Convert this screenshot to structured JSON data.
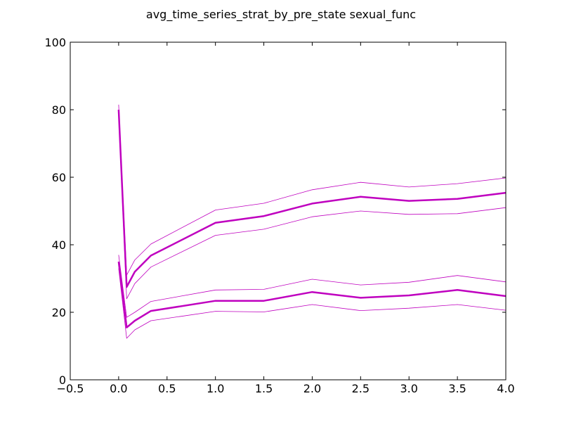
{
  "chart_data": {
    "type": "line",
    "title": "avg_time_series_strat_by_pre_state sexual_func",
    "xlabel": "",
    "ylabel": "",
    "xlim": [
      -0.5,
      4.0
    ],
    "ylim": [
      0,
      100
    ],
    "x_ticks": [
      "−0.5",
      "0.0",
      "0.5",
      "1.0",
      "1.5",
      "2.0",
      "2.5",
      "3.0",
      "3.5",
      "4.0"
    ],
    "y_ticks": [
      "0",
      "20",
      "40",
      "60",
      "80",
      "100"
    ],
    "grid": false,
    "line_color": "#bf00bf",
    "x": [
      0.0,
      0.083,
      0.167,
      0.333,
      1.0,
      1.5,
      2.0,
      2.5,
      3.0,
      3.5,
      4.0
    ],
    "series": [
      {
        "role": "mean",
        "values": [
          80.0,
          27.5,
          32.0,
          36.8,
          46.5,
          48.5,
          52.2,
          54.2,
          53.0,
          53.6,
          55.4
        ]
      },
      {
        "role": "upper_band",
        "values": [
          81.5,
          31.0,
          35.5,
          40.2,
          50.3,
          52.3,
          56.3,
          58.5,
          57.1,
          58.1,
          59.8
        ]
      },
      {
        "role": "lower_band",
        "values": [
          78.5,
          24.0,
          28.5,
          33.4,
          42.8,
          44.6,
          48.3,
          50.0,
          49.0,
          49.2,
          51.0
        ]
      },
      {
        "role": "mean",
        "values": [
          35.0,
          15.5,
          17.5,
          20.4,
          23.4,
          23.4,
          26.0,
          24.3,
          25.0,
          26.6,
          24.8
        ]
      },
      {
        "role": "upper_band",
        "values": [
          37.0,
          18.5,
          20.0,
          23.2,
          26.6,
          26.8,
          29.8,
          28.1,
          28.9,
          30.9,
          29.0
        ]
      },
      {
        "role": "lower_band",
        "values": [
          33.0,
          12.3,
          14.8,
          17.5,
          20.3,
          20.1,
          22.3,
          20.5,
          21.2,
          22.3,
          20.6
        ]
      }
    ]
  }
}
